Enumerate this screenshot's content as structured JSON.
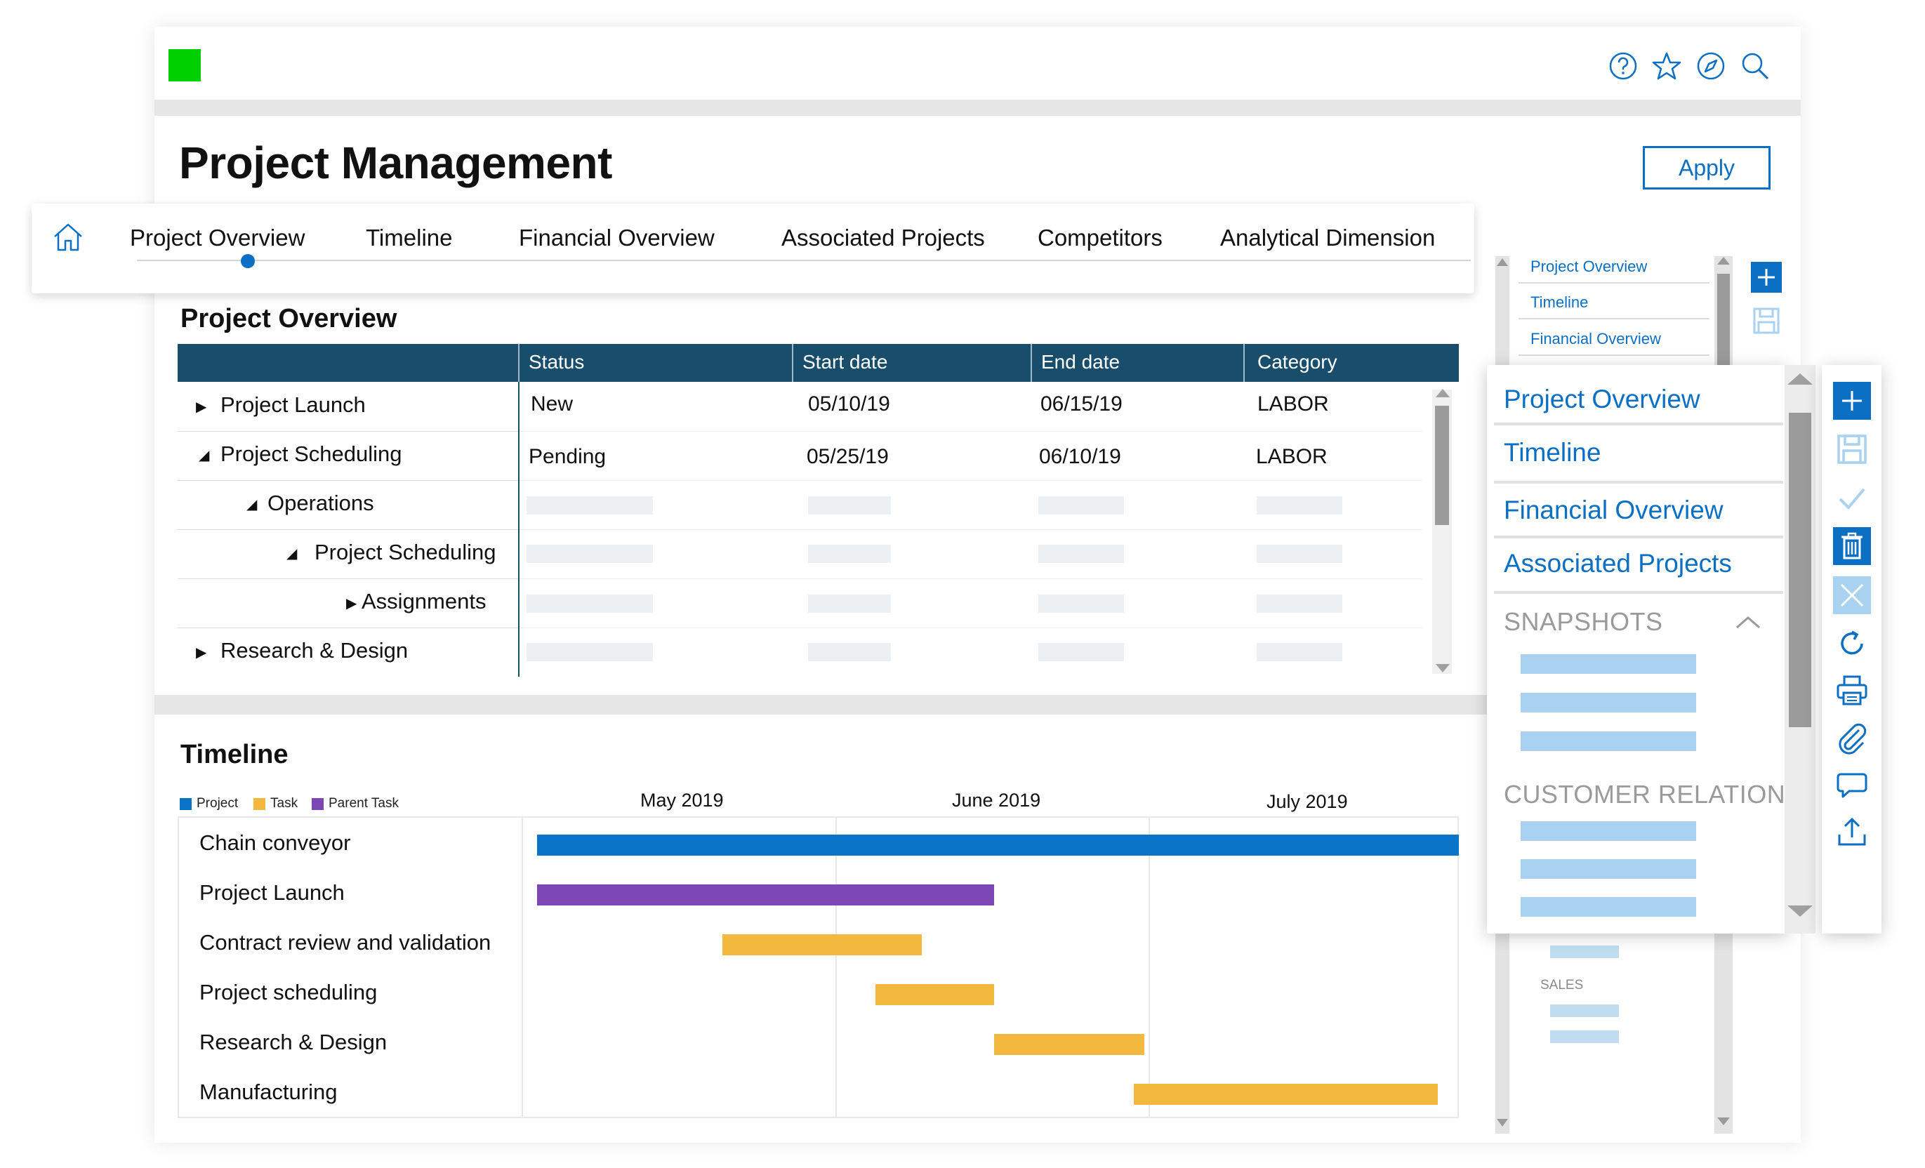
{
  "header": {
    "icons": [
      "help-icon",
      "star-icon",
      "compass-icon",
      "search-icon"
    ],
    "brand_color": "#00d000"
  },
  "page": {
    "title": "Project Management",
    "apply_label": "Apply"
  },
  "tabs": {
    "home_icon": "home-icon",
    "items": [
      {
        "label": "Project Overview"
      },
      {
        "label": "Timeline"
      },
      {
        "label": "Financial Overview"
      },
      {
        "label": "Associated Projects"
      },
      {
        "label": "Competitors"
      },
      {
        "label": "Analytical Dimension"
      }
    ],
    "active": "Project Overview"
  },
  "overview": {
    "title": "Project Overview",
    "columns": [
      "Status",
      "Start date",
      "End date",
      "Category"
    ],
    "rows": [
      {
        "label": "Project Launch",
        "toggle": "collapsed",
        "status": "New",
        "start": "05/10/19",
        "end": "06/15/19",
        "category": "LABOR"
      },
      {
        "label": "Project Scheduling",
        "toggle": "expanded",
        "status": "Pending",
        "start": "05/25/19",
        "end": "06/10/19",
        "category": "LABOR"
      },
      {
        "label": "Operations",
        "toggle": "expanded"
      },
      {
        "label": "Project Scheduling",
        "toggle": "expanded"
      },
      {
        "label": "Assignments",
        "toggle": "collapsed"
      },
      {
        "label": "Research & Design",
        "toggle": "collapsed"
      }
    ],
    "header_color": "#184e6b"
  },
  "timeline": {
    "title": "Timeline",
    "legend": [
      {
        "label": "Project",
        "color": "#0a74c9"
      },
      {
        "label": "Task",
        "color": "#f3b93e"
      },
      {
        "label": "Parent Task",
        "color": "#7c47b5"
      }
    ],
    "months": [
      "May 2019",
      "June 2019",
      "July 2019"
    ],
    "rows": [
      {
        "label": "Chain conveyor",
        "kind": "Project",
        "start_frac": 0.0,
        "end_frac": 1.0
      },
      {
        "label": "Project Launch",
        "kind": "Parent Task",
        "start_frac": 0.0,
        "end_frac": 0.496
      },
      {
        "label": "Contract review and validation",
        "kind": "Task",
        "start_frac": 0.201,
        "end_frac": 0.417
      },
      {
        "label": "Project scheduling",
        "kind": "Task",
        "start_frac": 0.367,
        "end_frac": 0.496
      },
      {
        "label": "Research & Design",
        "kind": "Task",
        "start_frac": 0.496,
        "end_frac": 0.659
      },
      {
        "label": "Manufacturing",
        "kind": "Task",
        "start_frac": 0.647,
        "end_frac": 0.977
      }
    ]
  },
  "mini_nav": {
    "links": [
      "Project Overview",
      "Timeline",
      "Financial Overview"
    ],
    "caption": "SALES"
  },
  "panel": {
    "links": [
      "Project Overview",
      "Timeline",
      "Financial Overview",
      "Associated Projects"
    ],
    "sections": [
      "SNAPSHOTS",
      "CUSTOMER RELATION"
    ],
    "accent": "#0b6fc3"
  },
  "toolbar": {
    "icons": [
      "add-icon",
      "save-icon",
      "check-icon",
      "delete-icon",
      "close-icon",
      "refresh-icon",
      "print-icon",
      "attach-icon",
      "comment-icon",
      "share-icon"
    ]
  }
}
